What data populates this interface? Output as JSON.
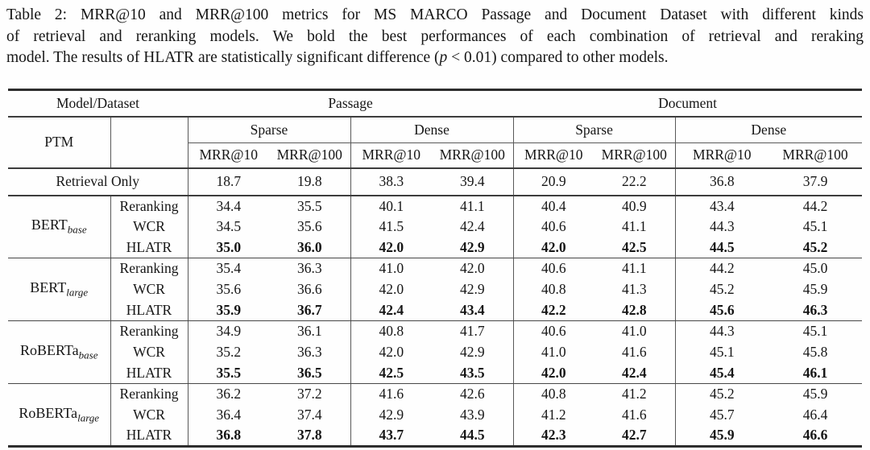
{
  "caption": {
    "line1": "Table 2: MRR@10 and MRR@100 metrics for MS MARCO Passage and Document Dataset with different kinds",
    "line2": "of retrieval and reranking models. We bold the best performances of each combination of retrieval and reraking",
    "line3_part1": "model. The results of HLATR are statistically significant difference (",
    "line3_p": "p",
    "line3_part2": " < 0.01) compared to other models."
  },
  "table": {
    "header": {
      "model_dataset": "Model/Dataset",
      "passage": "Passage",
      "document": "Document",
      "ptm": "PTM",
      "group_labels": [
        "Sparse",
        "Dense",
        "Sparse",
        "Dense"
      ],
      "metric_labels": [
        "MRR@10",
        "MRR@100",
        "MRR@10",
        "MRR@100",
        "MRR@10",
        "MRR@100",
        "MRR@10",
        "MRR@100"
      ]
    },
    "retrieval_only": {
      "label": "Retrieval Only",
      "values": [
        "18.7",
        "19.8",
        "38.3",
        "39.4",
        "20.9",
        "22.2",
        "36.8",
        "37.9"
      ]
    },
    "groups": [
      {
        "ptm": "BERT",
        "sub": "base",
        "rows": [
          {
            "method": "Reranking",
            "bold": false,
            "values": [
              "34.4",
              "35.5",
              "40.1",
              "41.1",
              "40.4",
              "40.9",
              "43.4",
              "44.2"
            ]
          },
          {
            "method": "WCR",
            "bold": false,
            "values": [
              "34.5",
              "35.6",
              "41.5",
              "42.4",
              "40.6",
              "41.1",
              "44.3",
              "45.1"
            ]
          },
          {
            "method": "HLATR",
            "bold": true,
            "values": [
              "35.0",
              "36.0",
              "42.0",
              "42.9",
              "42.0",
              "42.5",
              "44.5",
              "45.2"
            ]
          }
        ]
      },
      {
        "ptm": "BERT",
        "sub": "large",
        "rows": [
          {
            "method": "Reranking",
            "bold": false,
            "values": [
              "35.4",
              "36.3",
              "41.0",
              "42.0",
              "40.6",
              "41.1",
              "44.2",
              "45.0"
            ]
          },
          {
            "method": "WCR",
            "bold": false,
            "values": [
              "35.6",
              "36.6",
              "42.0",
              "42.9",
              "40.8",
              "41.3",
              "45.2",
              "45.9"
            ]
          },
          {
            "method": "HLATR",
            "bold": true,
            "values": [
              "35.9",
              "36.7",
              "42.4",
              "43.4",
              "42.2",
              "42.8",
              "45.6",
              "46.3"
            ]
          }
        ]
      },
      {
        "ptm": "RoBERTa",
        "sub": "base",
        "rows": [
          {
            "method": "Reranking",
            "bold": false,
            "values": [
              "34.9",
              "36.1",
              "40.8",
              "41.7",
              "40.6",
              "41.0",
              "44.3",
              "45.1"
            ]
          },
          {
            "method": "WCR",
            "bold": false,
            "values": [
              "35.2",
              "36.3",
              "42.0",
              "42.9",
              "41.0",
              "41.6",
              "45.1",
              "45.8"
            ]
          },
          {
            "method": "HLATR",
            "bold": true,
            "values": [
              "35.5",
              "36.5",
              "42.5",
              "43.5",
              "42.0",
              "42.4",
              "45.4",
              "46.1"
            ]
          }
        ]
      },
      {
        "ptm": "RoBERTa",
        "sub": "large",
        "rows": [
          {
            "method": "Reranking",
            "bold": false,
            "values": [
              "36.2",
              "37.2",
              "41.6",
              "42.6",
              "40.8",
              "41.2",
              "45.2",
              "45.9"
            ]
          },
          {
            "method": "WCR",
            "bold": false,
            "values": [
              "36.4",
              "37.4",
              "42.9",
              "43.9",
              "41.2",
              "41.6",
              "45.7",
              "46.4"
            ]
          },
          {
            "method": "HLATR",
            "bold": true,
            "values": [
              "36.8",
              "37.8",
              "43.7",
              "44.5",
              "42.3",
              "42.7",
              "45.9",
              "46.6"
            ]
          }
        ]
      }
    ]
  }
}
